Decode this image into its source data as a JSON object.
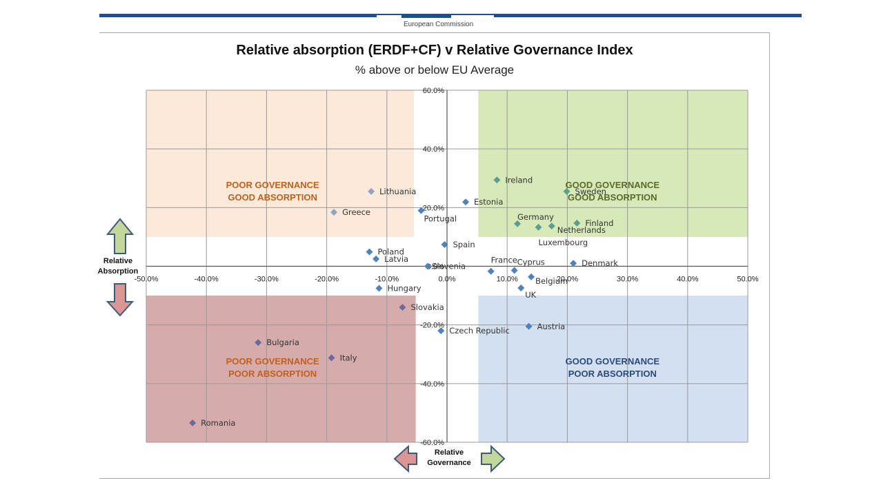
{
  "header": {
    "logo_text": "European Commission"
  },
  "chart_data": {
    "type": "scatter",
    "title": "Relative absorption (ERDF+CF) v Relative Governance Index",
    "subtitle": "% above or below EU Average",
    "xlabel": "Relative Governance",
    "ylabel": "Relative Absorption",
    "xlim": [
      -0.5,
      0.5
    ],
    "ylim": [
      -0.6,
      0.6
    ],
    "grid": true,
    "x_ticks": [
      "-50.0%",
      "-40.0%",
      "-30.0%",
      "-20.0%",
      "-10.0%",
      "0.0%",
      "10.0%",
      "20.0%",
      "30.0%",
      "40.0%",
      "50.0%"
    ],
    "y_ticks": [
      "60.0%",
      "40.0%",
      "20.0%",
      "0.0%",
      "-20.0%",
      "-40.0%",
      "-60.0%"
    ],
    "y_tick_values": [
      0.6,
      0.4,
      0.2,
      0.0,
      -0.2,
      -0.4,
      -0.6
    ],
    "points": [
      {
        "label": "Lithuania",
        "x": -0.126,
        "y": 0.255,
        "color": "#8ea2c4"
      },
      {
        "label": "Greece",
        "x": -0.188,
        "y": 0.184,
        "color": "#8ea2c4"
      },
      {
        "label": "Portugal",
        "x": -0.043,
        "y": 0.19,
        "color": "#4f81bd"
      },
      {
        "label": "Estonia",
        "x": 0.031,
        "y": 0.219,
        "color": "#4f81bd"
      },
      {
        "label": "Ireland",
        "x": 0.083,
        "y": 0.294,
        "color": "#5b9e8e"
      },
      {
        "label": "Sweden",
        "x": 0.199,
        "y": 0.255,
        "color": "#5b9e8e"
      },
      {
        "label": "Germany",
        "x": 0.117,
        "y": 0.145,
        "color": "#5b9e8e"
      },
      {
        "label": "Luxembourg",
        "x": 0.152,
        "y": 0.133,
        "color": "#5b9e8e"
      },
      {
        "label": "Netherlands",
        "x": 0.174,
        "y": 0.137,
        "color": "#5b9e8e"
      },
      {
        "label": "Finland",
        "x": 0.216,
        "y": 0.147,
        "color": "#5b9e8e"
      },
      {
        "label": "Spain",
        "x": -0.004,
        "y": 0.074,
        "color": "#4f81bd"
      },
      {
        "label": "Poland",
        "x": -0.129,
        "y": 0.049,
        "color": "#4f81bd"
      },
      {
        "label": "Latvia",
        "x": -0.118,
        "y": 0.025,
        "color": "#4f81bd"
      },
      {
        "label": "Slovenia",
        "x": -0.032,
        "y": 0.0,
        "color": "#4f81bd"
      },
      {
        "label": "France",
        "x": 0.073,
        "y": -0.017,
        "color": "#4f81bd"
      },
      {
        "label": "Cyprus",
        "x": 0.112,
        "y": -0.014,
        "color": "#4f81bd"
      },
      {
        "label": "Denmark",
        "x": 0.21,
        "y": 0.01,
        "color": "#4f81bd"
      },
      {
        "label": "Belgium",
        "x": 0.14,
        "y": -0.036,
        "color": "#4f81bd"
      },
      {
        "label": "UK",
        "x": 0.123,
        "y": -0.074,
        "color": "#4f81bd"
      },
      {
        "label": "Hungary",
        "x": -0.113,
        "y": -0.075,
        "color": "#4f81bd"
      },
      {
        "label": "Slovakia",
        "x": -0.074,
        "y": -0.14,
        "color": "#6a6a9e"
      },
      {
        "label": "Czech Republic",
        "x": -0.01,
        "y": -0.22,
        "color": "#4f81bd"
      },
      {
        "label": "Austria",
        "x": 0.136,
        "y": -0.205,
        "color": "#4f81bd"
      },
      {
        "label": "Bulgaria",
        "x": -0.314,
        "y": -0.26,
        "color": "#6a6a9e"
      },
      {
        "label": "Italy",
        "x": -0.192,
        "y": -0.312,
        "color": "#6a6a9e"
      },
      {
        "label": "Romania",
        "x": -0.423,
        "y": -0.534,
        "color": "#6a6a9e"
      }
    ],
    "annotations": [
      {
        "text": "POOR GOVERNANCE GOOD ABSORPTION",
        "lines": [
          "POOR GOVERNANCE",
          "GOOD ABSORPTION"
        ],
        "color": "#c0601c"
      },
      {
        "text": "GOOD GOVERNANCE GOOD ABSORPTION",
        "lines": [
          "GOOD GOVERNANCE",
          "GOOD ABSORPTION"
        ],
        "color": "#5a6a2a"
      },
      {
        "text": "POOR GOVERNANCE POOR ABSORPTION",
        "lines": [
          "POOR GOVERNANCE",
          "POOR ABSORPTION"
        ],
        "color": "#c0601c"
      },
      {
        "text": "GOOD GOVERNANCE POOR ABSORPTION",
        "lines": [
          "GOOD GOVERNANCE",
          "POOR ABSORPTION"
        ],
        "color": "#2b4a7a"
      }
    ],
    "quadrant_colors": {
      "poor_gov_good_abs": "#fde9d9",
      "good_gov_good_abs": "#d7e9b9",
      "poor_gov_poor_abs": "#d6abab",
      "good_gov_poor_abs": "#d3e0f2"
    },
    "arrow_colors": {
      "positive": "#c4d79b",
      "negative": "#da9694",
      "outline": "#3d5a7a"
    },
    "point_label_color": "#333333"
  }
}
